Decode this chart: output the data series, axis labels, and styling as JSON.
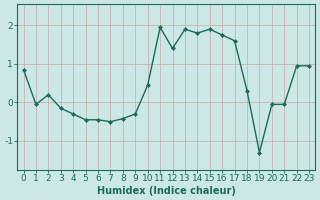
{
  "x": [
    0,
    1,
    2,
    3,
    4,
    5,
    6,
    7,
    8,
    9,
    10,
    11,
    12,
    13,
    14,
    15,
    16,
    17,
    18,
    19,
    20,
    21,
    22,
    23
  ],
  "y": [
    0.85,
    -0.05,
    0.2,
    -0.15,
    -0.3,
    -0.45,
    -0.45,
    -0.5,
    -0.42,
    -0.3,
    0.45,
    1.95,
    1.4,
    1.9,
    1.8,
    1.9,
    1.75,
    1.6,
    0.3,
    -1.3,
    -0.05,
    -0.05,
    0.95,
    0.95
  ],
  "line_color": "#1a6b5a",
  "marker": "D",
  "markersize": 2,
  "linewidth": 1.0,
  "bg_color": "#cce8e4",
  "grid_color_major": "#b8d4d0",
  "grid_color_minor": "#daecea",
  "xlabel": "Humidex (Indice chaleur)",
  "xlabel_fontsize": 7,
  "yticks": [
    -1,
    0,
    1,
    2
  ],
  "xticks": [
    0,
    1,
    2,
    3,
    4,
    5,
    6,
    7,
    8,
    9,
    10,
    11,
    12,
    13,
    14,
    15,
    16,
    17,
    18,
    19,
    20,
    21,
    22,
    23
  ],
  "ylim": [
    -1.75,
    2.55
  ],
  "xlim": [
    -0.5,
    23.5
  ],
  "tick_fontsize": 6.5
}
